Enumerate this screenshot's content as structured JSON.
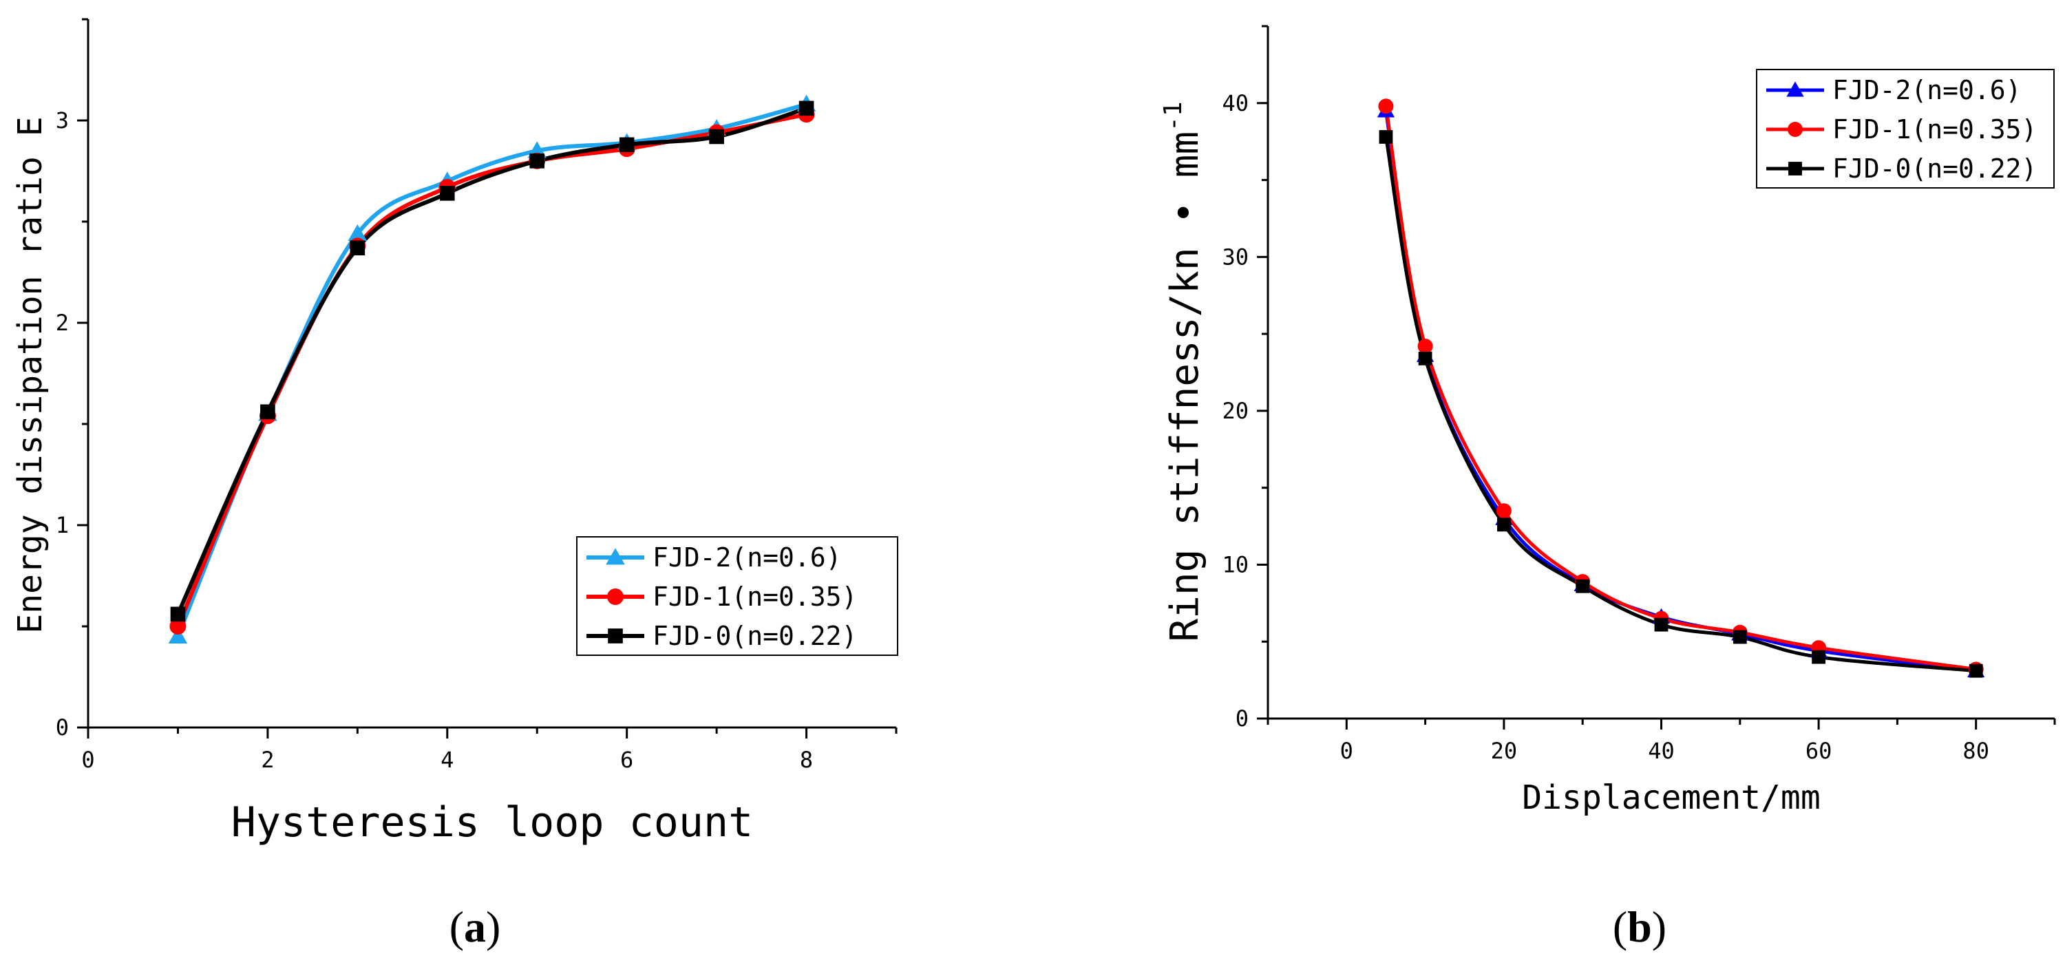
{
  "chart_data": [
    {
      "type": "line",
      "panel_label": "(a)",
      "panel_letter": "a",
      "xlabel": "Hysteresis loop count",
      "ylabel": "Energy dissipation ratio E",
      "xlim": [
        0,
        9
      ],
      "ylim": [
        0,
        3.5
      ],
      "xticks": [
        0,
        2,
        4,
        6,
        8
      ],
      "yticks": [
        0,
        1,
        2,
        3
      ],
      "legend_position": "lower-right",
      "series": [
        {
          "name": "FJD-2(n=0.6)",
          "color": "#1fa4f0",
          "marker": "triangle",
          "x": [
            1,
            2,
            3,
            4,
            5,
            6,
            7,
            8
          ],
          "y": [
            0.45,
            1.55,
            2.44,
            2.7,
            2.85,
            2.89,
            2.96,
            3.08
          ]
        },
        {
          "name": "FJD-1(n=0.35)",
          "color": "#ff0000",
          "marker": "circle",
          "x": [
            1,
            2,
            3,
            4,
            5,
            6,
            7,
            8
          ],
          "y": [
            0.5,
            1.54,
            2.38,
            2.67,
            2.8,
            2.86,
            2.94,
            3.03
          ]
        },
        {
          "name": "FJD-0(n=0.22)",
          "color": "#000000",
          "marker": "square",
          "x": [
            1,
            2,
            3,
            4,
            5,
            6,
            7,
            8
          ],
          "y": [
            0.56,
            1.56,
            2.37,
            2.64,
            2.8,
            2.88,
            2.92,
            3.06
          ]
        }
      ]
    },
    {
      "type": "line",
      "panel_label": "(b)",
      "panel_letter": "b",
      "xlabel": "Displacement/mm",
      "ylabel": "Ring stiffness/kn • mm",
      "ylabel_sup": "-1",
      "xlim": [
        -10,
        90
      ],
      "ylim": [
        0,
        45
      ],
      "xticks": [
        0,
        20,
        40,
        60,
        80
      ],
      "yticks": [
        0,
        10,
        20,
        30,
        40
      ],
      "legend_position": "top-right",
      "series": [
        {
          "name": "FJD-2(n=0.6)",
          "color": "#0000ff",
          "marker": "triangle",
          "x": [
            5,
            10,
            20,
            30,
            40,
            50,
            60,
            80
          ],
          "y": [
            39.5,
            23.6,
            13.0,
            8.7,
            6.6,
            5.5,
            4.4,
            3.1
          ]
        },
        {
          "name": "FJD-1(n=0.35)",
          "color": "#ff0000",
          "marker": "circle",
          "x": [
            5,
            10,
            20,
            30,
            40,
            50,
            60,
            80
          ],
          "y": [
            39.8,
            24.2,
            13.5,
            8.9,
            6.5,
            5.6,
            4.6,
            3.2
          ]
        },
        {
          "name": "FJD-0(n=0.22)",
          "color": "#000000",
          "marker": "square",
          "x": [
            5,
            10,
            20,
            30,
            40,
            50,
            60,
            80
          ],
          "y": [
            37.8,
            23.4,
            12.6,
            8.6,
            6.1,
            5.3,
            4.0,
            3.1
          ]
        }
      ]
    }
  ]
}
